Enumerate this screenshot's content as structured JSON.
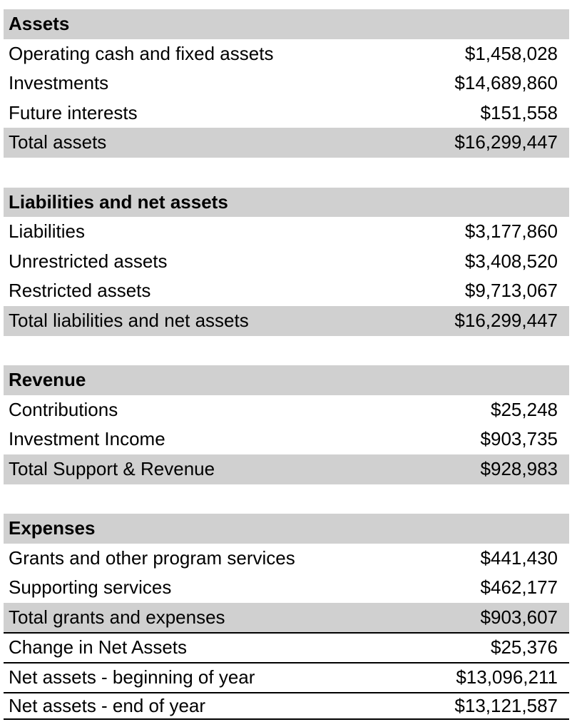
{
  "assets": {
    "header": "Assets",
    "rows": [
      {
        "label": "Operating cash and fixed assets",
        "value": "$1,458,028"
      },
      {
        "label": "Investments",
        "value": "$14,689,860"
      },
      {
        "label": "Future interests",
        "value": "$151,558"
      }
    ],
    "total": {
      "label": "Total assets",
      "value": "$16,299,447"
    }
  },
  "liabilities": {
    "header": "Liabilities and net assets",
    "rows": [
      {
        "label": "Liabilities",
        "value": "$3,177,860"
      },
      {
        "label": "Unrestricted assets",
        "value": "$3,408,520"
      },
      {
        "label": "Restricted assets",
        "value": "$9,713,067"
      }
    ],
    "total": {
      "label": "Total liabilities and net assets",
      "value": "$16,299,447"
    }
  },
  "revenue": {
    "header": "Revenue",
    "rows": [
      {
        "label": "Contributions",
        "value": "$25,248"
      },
      {
        "label": "Investment Income",
        "value": "$903,735"
      }
    ],
    "total": {
      "label": "Total Support & Revenue",
      "value": "$928,983"
    }
  },
  "expenses": {
    "header": "Expenses",
    "rows": [
      {
        "label": "Grants and other program services",
        "value": "$441,430"
      },
      {
        "label": "Supporting services",
        "value": "$462,177"
      }
    ],
    "total": {
      "label": "Total grants and expenses",
      "value": "$903,607"
    }
  },
  "summary": [
    {
      "label": "Change in Net Assets",
      "value": "$25,376"
    },
    {
      "label": "Net assets - beginning of year",
      "value": "$13,096,211"
    },
    {
      "label": "Net assets - end of year",
      "value": "$13,121,587"
    }
  ]
}
